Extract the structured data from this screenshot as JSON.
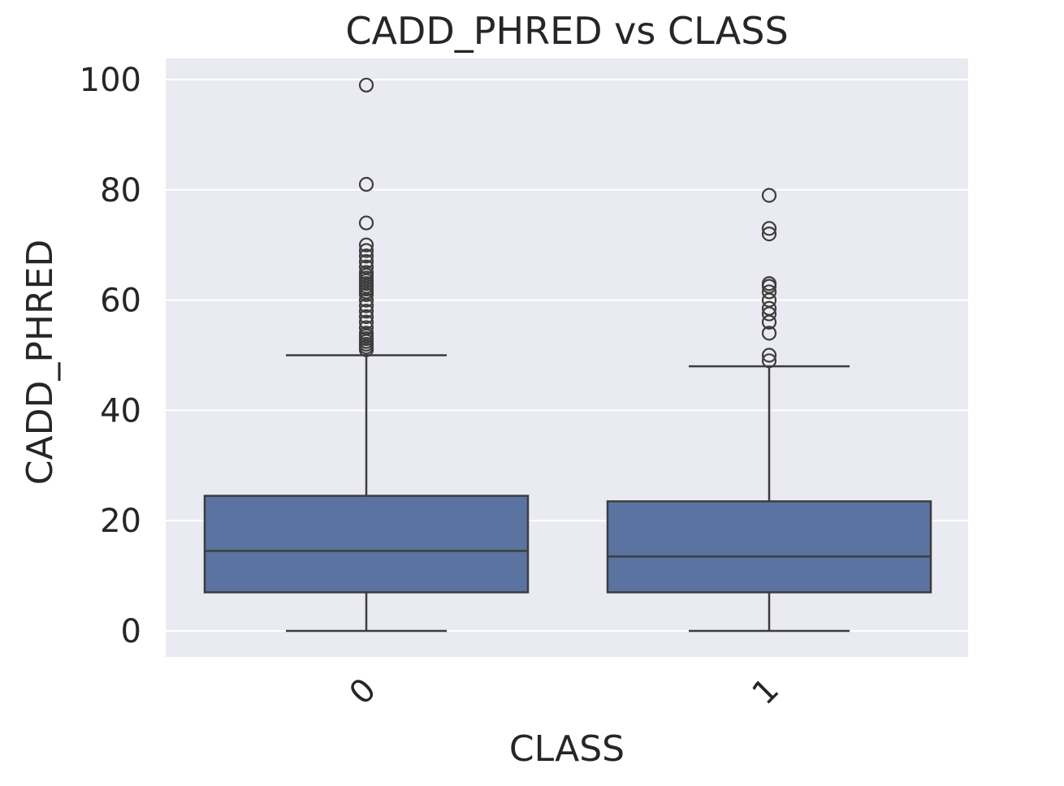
{
  "chart_data": {
    "type": "box",
    "title": "CADD_PHRED vs CLASS",
    "xlabel": "CLASS",
    "ylabel": "CADD_PHRED",
    "ylim": [
      -4.5,
      104
    ],
    "yticks": [
      0,
      20,
      40,
      60,
      80,
      100
    ],
    "ytick_labels": [
      "0",
      "20",
      "40",
      "60",
      "80",
      "100"
    ],
    "grid": true,
    "box_color": "#5b73a0",
    "background_color": "#eaeaf2",
    "boxes": [
      {
        "category": "0",
        "whisker_low": 0,
        "q1": 7,
        "median": 14.5,
        "q3": 24.5,
        "whisker_high": 50,
        "fliers": [
          51,
          51.5,
          52,
          52.5,
          53,
          53.5,
          54,
          55,
          56,
          57,
          58,
          59,
          60,
          61,
          61.5,
          62,
          62.5,
          63,
          63.5,
          64,
          64.5,
          65,
          66,
          67,
          68,
          69,
          70,
          74,
          81,
          99
        ]
      },
      {
        "category": "1",
        "whisker_low": 0,
        "q1": 7,
        "median": 13.5,
        "q3": 23.5,
        "whisker_high": 48,
        "fliers": [
          49,
          50,
          54,
          56,
          57.5,
          58.5,
          60,
          61.5,
          62.5,
          63,
          72,
          73,
          79
        ]
      }
    ]
  }
}
